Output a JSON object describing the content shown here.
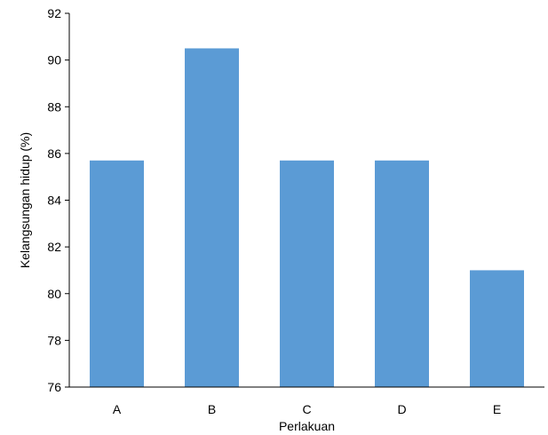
{
  "chart_data": {
    "type": "bar",
    "title": "",
    "xlabel": "Perlakuan",
    "ylabel": "Kelangsungan hidup (%)",
    "categories": [
      "A",
      "B",
      "C",
      "D",
      "E"
    ],
    "values": [
      85.7,
      90.5,
      85.7,
      85.7,
      81.0
    ],
    "ylim": [
      76,
      92
    ],
    "yticks": [
      76,
      78,
      80,
      82,
      84,
      86,
      88,
      90,
      92
    ],
    "grid": false,
    "legend": "none",
    "bar_color": "#5B9BD5",
    "axis_color": "#000000"
  }
}
